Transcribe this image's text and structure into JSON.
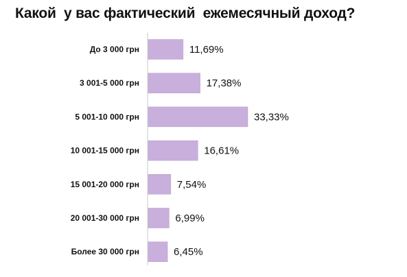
{
  "chart_data": {
    "type": "bar",
    "orientation": "horizontal",
    "title": "Какой  у вас фактический  ежемесячный доход?",
    "categories": [
      "До 3 000 грн",
      "3 001-5 000 грн",
      "5 001-10 000 грн",
      "10 001-15 000 грн",
      "15 001-20 000 грн",
      "20 001-30 000 грн",
      "Более 30 000 грн"
    ],
    "values": [
      11.69,
      17.38,
      33.33,
      16.61,
      7.54,
      6.99,
      6.45
    ],
    "value_labels": [
      "11,69%",
      "17,38%",
      "33,33%",
      "16,61%",
      "7,54%",
      "6,99%",
      "6,45%"
    ],
    "unit": "%",
    "xlim": [
      0,
      100
    ],
    "grid": false,
    "legend": "none",
    "colors": {
      "bar": "#c9afdc",
      "bar_edge": "#b89bcd",
      "axis": "#c8c8c8",
      "text": "#111111"
    }
  }
}
